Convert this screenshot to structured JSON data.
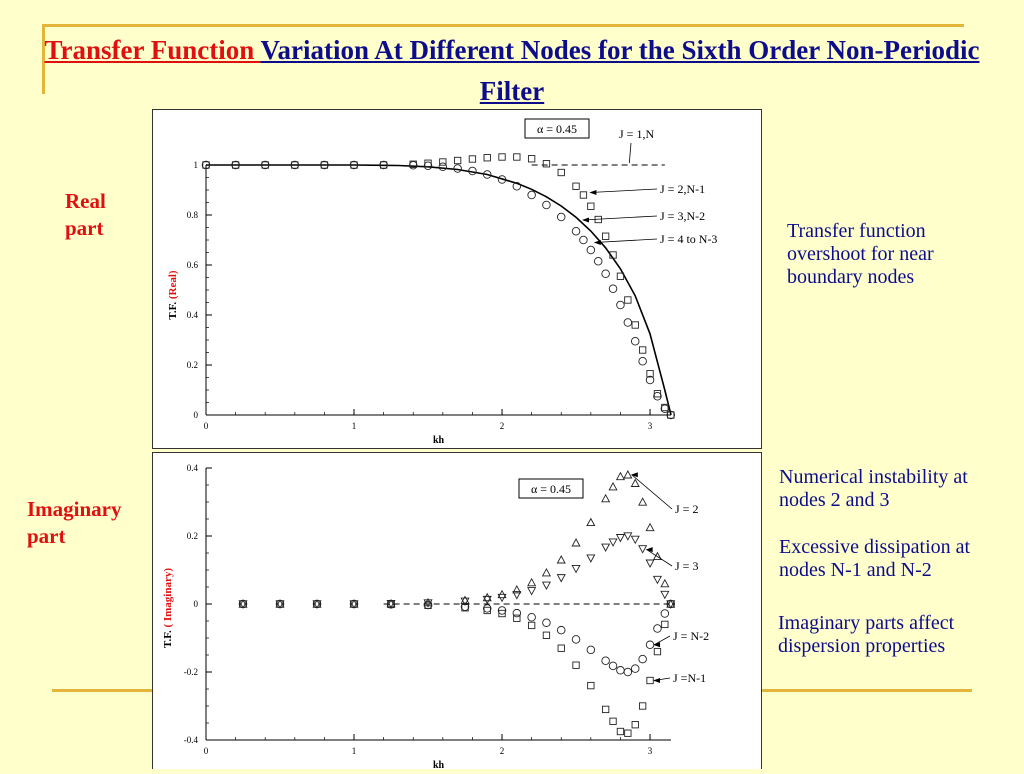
{
  "title": {
    "part1": "Transfer Function ",
    "part2": "Variation At Different Nodes for the Sixth Order Non-Periodic Filter"
  },
  "side_labels": {
    "real": "Real part",
    "imaginary": "Imaginary part"
  },
  "notes": {
    "overshoot": "Transfer function overshoot for near boundary nodes",
    "instability": "Numerical instability at nodes 2 and 3",
    "dissipation": "Excessive dissipation at nodes N-1 and N-2",
    "dispersion": "Imaginary parts affect dispersion properties"
  },
  "colors": {
    "background": "#ffffcc",
    "accent": "#e3b53a",
    "red": "#e01010",
    "navy": "#0d0d8c"
  },
  "chart_data": [
    {
      "type": "line",
      "title": "",
      "xlabel": "kh",
      "ylabel_prefix": "T.F.",
      "ylabel_suffix": "(Real)",
      "xlim": [
        0,
        3.14159
      ],
      "ylim": [
        0,
        1.0
      ],
      "xticks": [
        0,
        1,
        2,
        3
      ],
      "yticks": [
        0,
        0.2,
        0.4,
        0.6,
        0.8,
        1
      ],
      "ytick_labels": [
        "0",
        "0.2",
        "0.4",
        "0.6",
        "0.8",
        "1"
      ],
      "annotation_box": "α = 0.45",
      "reference_line": {
        "y": 1.0,
        "style": "dashed",
        "x_range": [
          2.2,
          3.1
        ]
      },
      "series": [
        {
          "name": "J = 1,N",
          "marker": "none",
          "x": [
            0,
            0.5,
            1.0,
            1.3,
            1.5,
            1.7,
            1.9,
            2.1,
            2.2,
            2.3,
            2.4,
            2.5,
            2.6,
            2.7,
            2.8,
            2.9,
            3.0,
            3.1,
            3.14159
          ],
          "y": [
            1.0,
            1.0,
            1.0,
            0.998,
            0.993,
            0.982,
            0.962,
            0.927,
            0.903,
            0.873,
            0.836,
            0.791,
            0.736,
            0.669,
            0.585,
            0.477,
            0.325,
            0.1,
            0.0
          ]
        },
        {
          "name": "J = 2,N-1",
          "marker": "square",
          "x": [
            0,
            0.2,
            0.4,
            0.6,
            0.8,
            1.0,
            1.2,
            1.4,
            1.5,
            1.6,
            1.7,
            1.8,
            1.9,
            2.0,
            2.1,
            2.2,
            2.3,
            2.4,
            2.5,
            2.55,
            2.6,
            2.65,
            2.7,
            2.75,
            2.8,
            2.85,
            2.9,
            2.95,
            3.0,
            3.05,
            3.1,
            3.14
          ],
          "y": [
            1.0,
            1.0,
            1.0,
            1.0,
            1.0,
            1.0,
            1.0,
            1.003,
            1.007,
            1.012,
            1.018,
            1.024,
            1.029,
            1.032,
            1.032,
            1.025,
            1.005,
            0.97,
            0.915,
            0.88,
            0.835,
            0.782,
            0.715,
            0.64,
            0.555,
            0.46,
            0.36,
            0.26,
            0.165,
            0.085,
            0.03,
            0.0
          ]
        },
        {
          "name": "J = 3,N-2",
          "marker": "circle",
          "x": [
            0,
            0.2,
            0.4,
            0.6,
            0.8,
            1.0,
            1.2,
            1.4,
            1.5,
            1.6,
            1.7,
            1.8,
            1.9,
            2.0,
            2.1,
            2.2,
            2.3,
            2.4,
            2.5,
            2.55,
            2.6,
            2.65,
            2.7,
            2.75,
            2.8,
            2.85,
            2.9,
            2.95,
            3.0,
            3.05,
            3.1,
            3.14
          ],
          "y": [
            1.0,
            1.0,
            1.0,
            1.0,
            1.0,
            1.0,
            1.0,
            0.999,
            0.997,
            0.993,
            0.986,
            0.976,
            0.962,
            0.942,
            0.915,
            0.88,
            0.84,
            0.792,
            0.735,
            0.7,
            0.66,
            0.615,
            0.565,
            0.505,
            0.44,
            0.37,
            0.295,
            0.215,
            0.14,
            0.075,
            0.025,
            0.0
          ]
        },
        {
          "name": "J = 4 to N-3",
          "marker": "none",
          "labelOnly": true,
          "x": [],
          "y": []
        }
      ],
      "leader_labels": [
        {
          "text": "J = 1,N",
          "target": [
            2.86,
            1.0
          ]
        },
        {
          "text": "J = 2,N-1",
          "target": [
            2.57,
            0.89
          ]
        },
        {
          "text": "J = 3,N-2",
          "target": [
            2.52,
            0.78
          ]
        },
        {
          "text": "J = 4 to N-3",
          "target": [
            2.6,
            0.69
          ]
        }
      ]
    },
    {
      "type": "line",
      "title": "",
      "xlabel": "kh",
      "ylabel_prefix": "T.F.",
      "ylabel_suffix": "( Imaginary)",
      "xlim": [
        0,
        3.14159
      ],
      "ylim": [
        -0.4,
        0.4
      ],
      "xticks": [
        0,
        1,
        2,
        3
      ],
      "yticks": [
        -0.4,
        -0.2,
        0,
        0.2,
        0.4
      ],
      "ytick_labels": [
        "-0.4",
        "-0.2",
        "0",
        "0.2",
        "0.4"
      ],
      "annotation_box": "α = 0.45",
      "reference_line": {
        "y": 0.0,
        "style": "dashed",
        "x_range": [
          1.2,
          3.14
        ]
      },
      "series": [
        {
          "name": "J = 2",
          "marker": "triangle",
          "x": [
            0.25,
            0.5,
            0.75,
            1.0,
            1.25,
            1.5,
            1.75,
            1.9,
            2.0,
            2.1,
            2.2,
            2.3,
            2.4,
            2.5,
            2.6,
            2.7,
            2.75,
            2.8,
            2.85,
            2.9,
            2.95,
            3.0,
            3.05,
            3.1,
            3.14
          ],
          "y": [
            0.0,
            0.0,
            0.0,
            0.0,
            0.001,
            0.004,
            0.011,
            0.019,
            0.028,
            0.042,
            0.063,
            0.092,
            0.13,
            0.18,
            0.24,
            0.31,
            0.345,
            0.375,
            0.38,
            0.355,
            0.3,
            0.225,
            0.14,
            0.06,
            0.0
          ]
        },
        {
          "name": "J = 3",
          "marker": "triangle_down",
          "x": [
            0.25,
            0.5,
            0.75,
            1.0,
            1.25,
            1.5,
            1.75,
            1.9,
            2.0,
            2.1,
            2.2,
            2.3,
            2.4,
            2.5,
            2.6,
            2.7,
            2.75,
            2.8,
            2.85,
            2.9,
            2.95,
            3.0,
            3.05,
            3.1,
            3.14
          ],
          "y": [
            0.0,
            0.0,
            0.0,
            0.0,
            0.001,
            0.003,
            0.008,
            0.013,
            0.019,
            0.027,
            0.039,
            0.055,
            0.077,
            0.104,
            0.135,
            0.167,
            0.182,
            0.195,
            0.2,
            0.19,
            0.162,
            0.12,
            0.072,
            0.028,
            0.0
          ]
        },
        {
          "name": "J = N-2",
          "marker": "circle",
          "x": [
            0.25,
            0.5,
            0.75,
            1.0,
            1.25,
            1.5,
            1.75,
            1.9,
            2.0,
            2.1,
            2.2,
            2.3,
            2.4,
            2.5,
            2.6,
            2.7,
            2.75,
            2.8,
            2.85,
            2.9,
            2.95,
            3.0,
            3.05,
            3.1,
            3.14
          ],
          "y": [
            0.0,
            0.0,
            0.0,
            0.0,
            -0.001,
            -0.003,
            -0.008,
            -0.013,
            -0.019,
            -0.027,
            -0.039,
            -0.055,
            -0.077,
            -0.104,
            -0.135,
            -0.167,
            -0.182,
            -0.195,
            -0.2,
            -0.19,
            -0.162,
            -0.12,
            -0.072,
            -0.028,
            0.0
          ]
        },
        {
          "name": "J =N-1",
          "marker": "square",
          "x": [
            0.25,
            0.5,
            0.75,
            1.0,
            1.25,
            1.5,
            1.75,
            1.9,
            2.0,
            2.1,
            2.2,
            2.3,
            2.4,
            2.5,
            2.6,
            2.7,
            2.75,
            2.8,
            2.85,
            2.9,
            2.95,
            3.0,
            3.05,
            3.1,
            3.14
          ],
          "y": [
            0.0,
            0.0,
            0.0,
            0.0,
            -0.001,
            -0.004,
            -0.011,
            -0.019,
            -0.028,
            -0.042,
            -0.063,
            -0.092,
            -0.13,
            -0.18,
            -0.24,
            -0.31,
            -0.345,
            -0.375,
            -0.38,
            -0.355,
            -0.3,
            -0.225,
            -0.14,
            -0.06,
            0.0
          ]
        }
      ],
      "leader_labels": [
        {
          "text": "J = 2",
          "target": [
            2.85,
            0.38
          ]
        },
        {
          "text": "J = 3",
          "target": [
            2.95,
            0.16
          ]
        },
        {
          "text": "J = N-2",
          "target": [
            3.0,
            -0.12
          ]
        },
        {
          "text": "J =N-1",
          "target": [
            3.0,
            -0.225
          ]
        }
      ]
    }
  ]
}
